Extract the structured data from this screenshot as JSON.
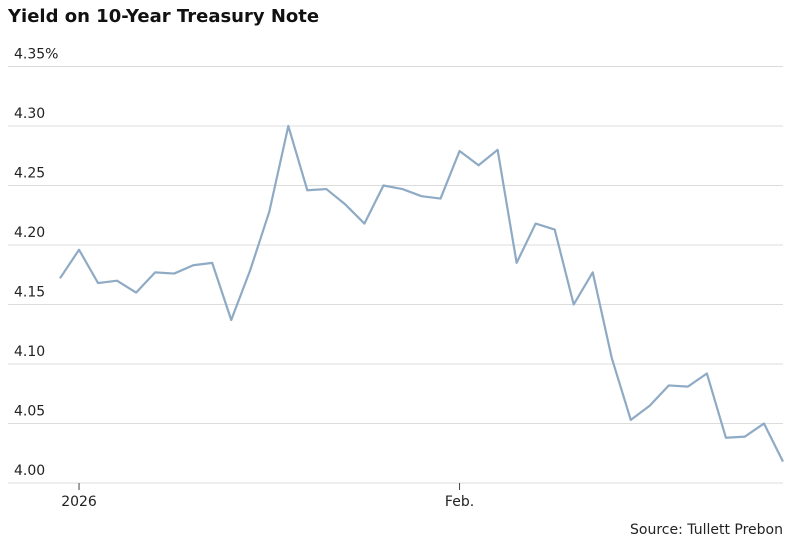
{
  "chart_data": {
    "type": "line",
    "title": "Yield on 10-Year Treasury Note",
    "source": "Source: Tullett Prebon",
    "categories": [
      null,
      "2026",
      null,
      null,
      null,
      null,
      null,
      null,
      null,
      null,
      null,
      null,
      null,
      null,
      null,
      null,
      null,
      null,
      null,
      null,
      null,
      "Feb.",
      null,
      null,
      null,
      null,
      null,
      null,
      null,
      null,
      null,
      null,
      null,
      null,
      null,
      null,
      null,
      null,
      null
    ],
    "series": [
      {
        "name": "Yield",
        "color": "#8eaac4",
        "values": [
          4.172,
          4.196,
          4.168,
          4.17,
          4.16,
          4.177,
          4.176,
          4.183,
          4.185,
          4.137,
          4.179,
          4.228,
          4.3,
          4.246,
          4.247,
          4.234,
          4.218,
          4.25,
          4.247,
          4.241,
          4.239,
          4.279,
          4.267,
          4.28,
          4.185,
          4.218,
          4.213,
          4.15,
          4.177,
          4.105,
          4.053,
          4.065,
          4.082,
          4.081,
          4.092,
          4.038,
          4.039,
          4.05,
          4.018
        ]
      }
    ],
    "ylim": [
      4.0,
      4.35
    ],
    "yticks": [
      {
        "value": 4.0,
        "label": "4.00"
      },
      4.05,
      {
        "value": 4.1,
        "label": "4.10"
      },
      4.15,
      {
        "value": 4.2,
        "label": "4.20"
      },
      4.25,
      {
        "value": 4.3,
        "label": "4.30"
      },
      {
        "value": 4.35,
        "label": "4.35%"
      }
    ],
    "grid": true
  }
}
